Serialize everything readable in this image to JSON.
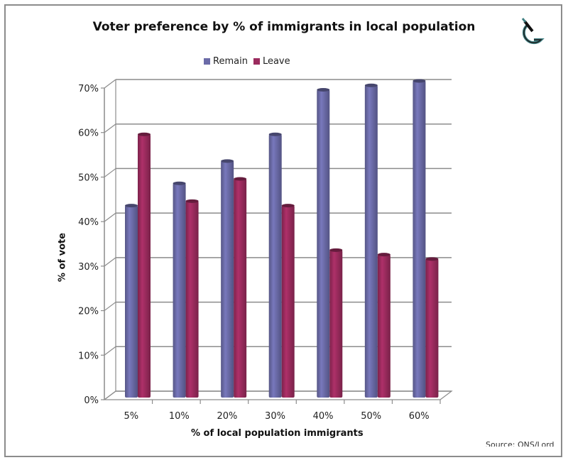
{
  "chart_data": {
    "type": "bar",
    "subtype": "3d-clustered-column",
    "title": "Voter preference by % of immigrants in local population",
    "xlabel": "% of local population immigrants",
    "ylabel": "% of vote",
    "categories": [
      "5%",
      "10%",
      "20%",
      "30%",
      "40%",
      "50%",
      "60%"
    ],
    "series": [
      {
        "name": "Remain",
        "color": "#6b6ba8",
        "values": [
          42,
          47,
          52,
          58,
          68,
          69,
          70
        ]
      },
      {
        "name": "Leave",
        "color": "#9b2b5e",
        "values": [
          58,
          43,
          48,
          42,
          32,
          31,
          30
        ]
      }
    ],
    "ylim": [
      0,
      70
    ],
    "yticks": [
      "0%",
      "10%",
      "20%",
      "30%",
      "40%",
      "50%",
      "60%",
      "70%"
    ],
    "grid": true,
    "legend": "top-center",
    "source": "Source: ONS/Lord"
  },
  "logo": {
    "icon": "magnifier-g-logo-icon"
  }
}
